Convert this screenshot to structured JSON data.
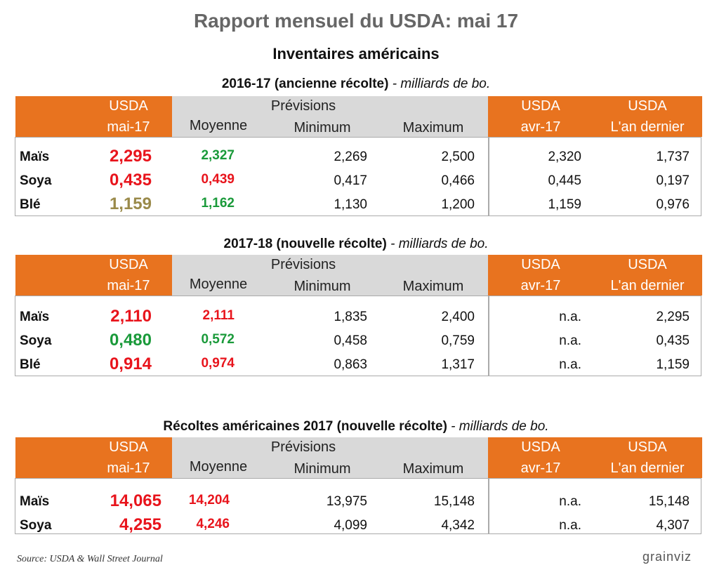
{
  "title": "Rapport mensuel du USDA: mai 17",
  "subtitle": "Inventaires américains",
  "tables": [
    {
      "caption": {
        "bold": "2016-17 (ancienne récolte)",
        "italic": " - milliards de bo."
      },
      "header": {
        "usda_label": "USDA",
        "usda_month": "mai-17",
        "forecast_label": "Prévisions",
        "avg_label": "Moyenne",
        "min_label": "Minimum",
        "max_label": "Maximum",
        "prev_label": "USDA",
        "prev_month": "avr-17",
        "last_label": "USDA",
        "last_year": "L'an dernier"
      },
      "rows": [
        {
          "label": "Maïs",
          "usda": "2,295",
          "usda_color": "#e8141c",
          "average": "2,327",
          "average_color": "#1a9a3a",
          "minimum": "2,269",
          "maximum": "2,500",
          "previous": "2,320",
          "last_year": "1,737"
        },
        {
          "label": "Soya",
          "usda": "0,435",
          "usda_color": "#e8141c",
          "average": "0,439",
          "average_color": "#e8141c",
          "minimum": "0,417",
          "maximum": "0,466",
          "previous": "0,445",
          "last_year": "0,197"
        },
        {
          "label": "Blé",
          "usda": "1,159",
          "usda_color": "#9a8a4a",
          "average": "1,162",
          "average_color": "#1a9a3a",
          "minimum": "1,130",
          "maximum": "1,200",
          "previous": "1,159",
          "last_year": "0,976"
        }
      ]
    },
    {
      "caption": {
        "bold": "2017-18 (nouvelle récolte)",
        "italic": " - milliards de bo."
      },
      "header": {
        "usda_label": "USDA",
        "usda_month": "mai-17",
        "forecast_label": "Prévisions",
        "avg_label": "Moyenne",
        "min_label": "Minimum",
        "max_label": "Maximum",
        "prev_label": "USDA",
        "prev_month": "avr-17",
        "last_label": "USDA",
        "last_year": "L'an dernier"
      },
      "rows": [
        {
          "label": "Maïs",
          "usda": "2,110",
          "usda_color": "#e8141c",
          "average": "2,111",
          "average_color": "#e8141c",
          "minimum": "1,835",
          "maximum": "2,400",
          "previous": "n.a.",
          "last_year": "2,295"
        },
        {
          "label": "Soya",
          "usda": "0,480",
          "usda_color": "#1a9a3a",
          "average": "0,572",
          "average_color": "#1a9a3a",
          "minimum": "0,458",
          "maximum": "0,759",
          "previous": "n.a.",
          "last_year": "0,435"
        },
        {
          "label": "Blé",
          "usda": "0,914",
          "usda_color": "#e8141c",
          "average": "0,974",
          "average_color": "#e8141c",
          "minimum": "0,863",
          "maximum": "1,317",
          "previous": "n.a.",
          "last_year": "1,159"
        }
      ]
    },
    {
      "caption": {
        "bold": "Récoltes américaines 2017 (nouvelle récolte)",
        "italic": " - milliards de bo."
      },
      "header": {
        "usda_label": "USDA",
        "usda_month": "mai-17",
        "forecast_label": "Prévisions",
        "avg_label": "Moyenne",
        "min_label": "Minimum",
        "max_label": "Maximum",
        "prev_label": "USDA",
        "prev_month": "avr-17",
        "last_label": "USDA",
        "last_year": "L'an dernier"
      },
      "rows": [
        {
          "label": "Maïs",
          "usda": "14,065",
          "usda_color": "#e8141c",
          "average": "14,204",
          "average_color": "#e8141c",
          "minimum": "13,975",
          "maximum": "15,148",
          "previous": "n.a.",
          "last_year": "15,148"
        },
        {
          "label": "Soya",
          "usda": "4,255",
          "usda_color": "#e8141c",
          "average": "4,246",
          "average_color": "#e8141c",
          "minimum": "4,099",
          "maximum": "4,342",
          "previous": "n.a.",
          "last_year": "4,307"
        }
      ]
    }
  ],
  "source": "Source: USDA & Wall Street Journal",
  "logo": "grainviz"
}
